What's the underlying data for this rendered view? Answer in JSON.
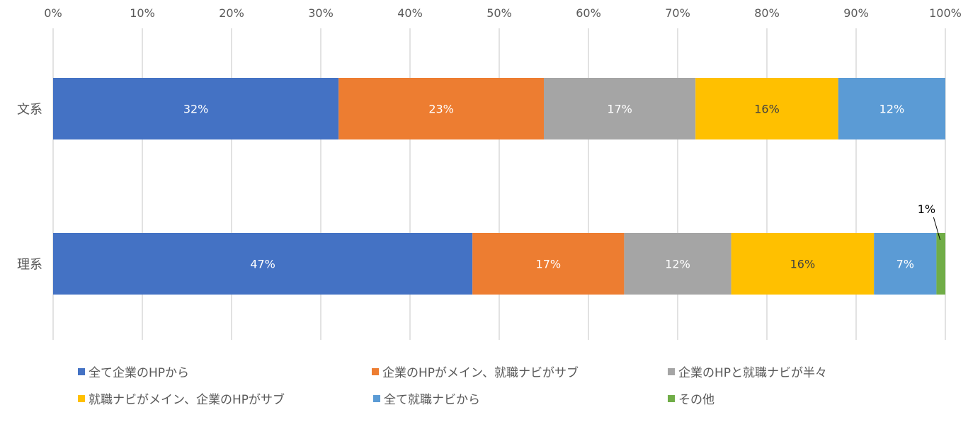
{
  "chart_data": {
    "type": "bar",
    "orientation": "horizontal",
    "stacked": "percent",
    "categories": [
      "文系",
      "理系"
    ],
    "xlim": [
      0,
      100
    ],
    "x_ticks": [
      "0%",
      "10%",
      "20%",
      "30%",
      "40%",
      "50%",
      "60%",
      "70%",
      "80%",
      "90%",
      "100%"
    ],
    "x_axis_position": "top",
    "grid": true,
    "legend_position": "bottom",
    "series": [
      {
        "name": "全て企業のHPから",
        "color": "#4472C4",
        "label_color": "#FFFFFF",
        "values": [
          32,
          47
        ],
        "labels": [
          "32%",
          "47%"
        ]
      },
      {
        "name": "企業のHPがメイン、就職ナビがサブ",
        "color": "#ED7D31",
        "label_color": "#FFFFFF",
        "values": [
          23,
          17
        ],
        "labels": [
          "23%",
          "17%"
        ]
      },
      {
        "name": "企業のHPと就職ナビが半々",
        "color": "#A5A5A5",
        "label_color": "#FFFFFF",
        "values": [
          17,
          12
        ],
        "labels": [
          "17%",
          "12%"
        ]
      },
      {
        "name": "就職ナビがメイン、企業のHPがサブ",
        "color": "#FFC000",
        "label_color": "#404040",
        "values": [
          16,
          16
        ],
        "labels": [
          "16%",
          "16%"
        ]
      },
      {
        "name": "全て就職ナビから",
        "color": "#5B9BD5",
        "label_color": "#FFFFFF",
        "values": [
          12,
          7
        ],
        "labels": [
          "12%",
          "7%"
        ]
      },
      {
        "name": "その他",
        "color": "#70AD47",
        "label_color": "#000000",
        "values": [
          0,
          1
        ],
        "labels": [
          "",
          "1%"
        ]
      }
    ]
  }
}
